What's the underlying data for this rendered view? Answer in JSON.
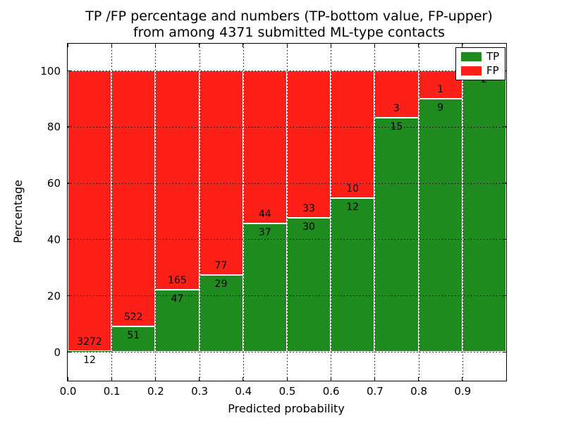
{
  "title": {
    "line1": "TP /FP percentage and numbers (TP-bottom value, FP-upper)",
    "line2": "from among 4371 submitted ML-type contacts"
  },
  "axes": {
    "xlabel": "Predicted probability",
    "ylabel": "Percentage",
    "x_ticks": [
      "0.0",
      "0.1",
      "0.2",
      "0.3",
      "0.4",
      "0.5",
      "0.6",
      "0.7",
      "0.8",
      "0.9"
    ],
    "y_ticks": [
      "0",
      "20",
      "40",
      "60",
      "80",
      "100"
    ],
    "grid_style": "dotted"
  },
  "legend": {
    "position": "upper right",
    "items": [
      {
        "label": "TP",
        "color": "#1f8b1f"
      },
      {
        "label": "FP",
        "color": "#fc2019"
      }
    ]
  },
  "chart_data": {
    "type": "bar",
    "stacked": true,
    "title": "TP /FP percentage and numbers (TP-bottom value, FP-upper) from among 4371 submitted ML-type contacts",
    "xlabel": "Predicted probability",
    "ylabel": "Percentage",
    "total_contacts": 4371,
    "xlim": [
      0.0,
      1.0
    ],
    "ylim": [
      0,
      100
    ],
    "bin_edges": [
      0.0,
      0.1,
      0.2,
      0.3,
      0.4,
      0.5,
      0.6,
      0.7,
      0.8,
      0.9,
      1.0
    ],
    "series": [
      {
        "name": "TP",
        "color": "#1f8b1f",
        "counts": [
          12,
          51,
          47,
          29,
          37,
          30,
          12,
          15,
          9,
          2
        ],
        "percent": [
          0.37,
          8.9,
          22.17,
          27.36,
          45.68,
          47.62,
          54.55,
          83.33,
          90.0,
          100.0
        ]
      },
      {
        "name": "FP",
        "color": "#fc2019",
        "counts": [
          3272,
          522,
          165,
          77,
          44,
          33,
          10,
          3,
          1,
          0
        ],
        "percent": [
          99.63,
          91.1,
          77.83,
          72.64,
          54.32,
          52.38,
          45.45,
          16.67,
          10.0,
          0.0
        ]
      }
    ],
    "legend_position": "upper right",
    "grid": "dotted"
  }
}
